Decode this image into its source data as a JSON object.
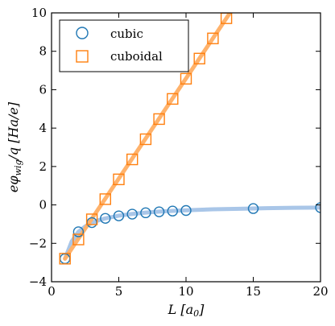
{
  "chart_data": {
    "type": "scatter",
    "xlabel": "L [a0]",
    "ylabel": "eφwig/q [Ha/e]",
    "xlim": [
      0,
      20
    ],
    "ylim": [
      -4,
      10
    ],
    "xticks": [
      0,
      5,
      10,
      15,
      20
    ],
    "yticks": [
      -4,
      -2,
      0,
      2,
      4,
      6,
      8,
      10
    ],
    "grid": false,
    "legend_position": "top-left",
    "series": [
      {
        "name": "cubic",
        "marker": "circle",
        "color": "#1f77b4",
        "fit_color": "#a9c6e8",
        "x": [
          1,
          2,
          3,
          4,
          5,
          6,
          7,
          8,
          9,
          10,
          15,
          20
        ],
        "y": [
          -2.8,
          -1.4,
          -0.92,
          -0.7,
          -0.57,
          -0.48,
          -0.41,
          -0.36,
          -0.32,
          -0.29,
          -0.19,
          -0.14
        ],
        "fit_x": [
          1,
          1.5,
          2,
          2.5,
          3,
          3.5,
          4,
          5,
          6,
          7,
          8,
          9,
          10,
          12,
          14,
          16,
          18,
          20
        ],
        "fit_y": [
          -2.8,
          -1.9,
          -1.4,
          -1.12,
          -0.93,
          -0.8,
          -0.7,
          -0.56,
          -0.47,
          -0.4,
          -0.35,
          -0.31,
          -0.28,
          -0.23,
          -0.2,
          -0.17,
          -0.15,
          -0.14
        ]
      },
      {
        "name": "cuboidal",
        "marker": "square",
        "color": "#ff7f0e",
        "fit_color": "#ffb26b",
        "x": [
          1,
          2,
          3,
          4,
          5,
          6,
          7,
          8,
          9,
          10,
          11,
          12,
          13
        ],
        "y": [
          -2.8,
          -1.8,
          -0.75,
          0.3,
          1.33,
          2.37,
          3.42,
          4.47,
          5.52,
          6.57,
          7.62,
          8.67,
          9.72
        ],
        "fit_x": [
          1,
          13.3
        ],
        "fit_y": [
          -2.8,
          10.03
        ]
      }
    ]
  }
}
